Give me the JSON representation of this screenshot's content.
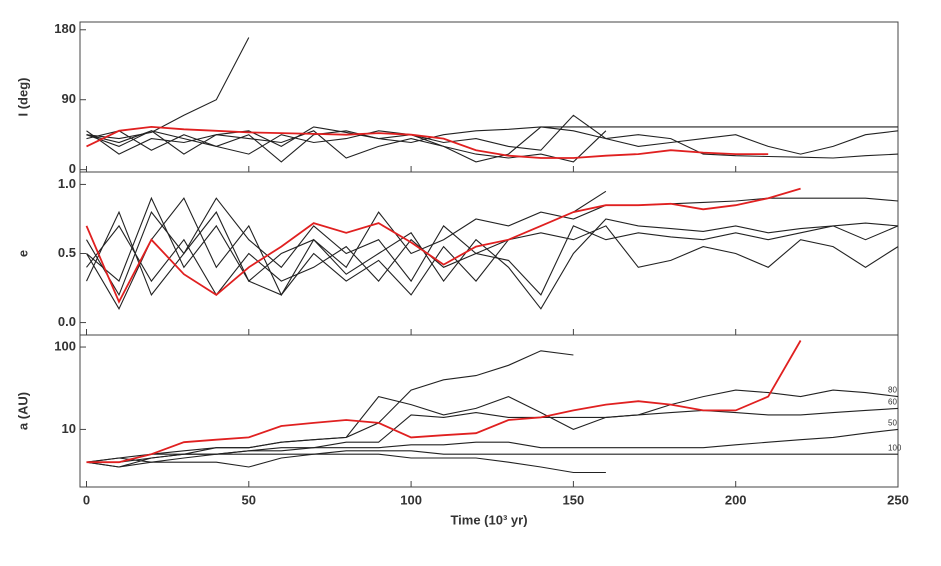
{
  "chart_data": [
    {
      "type": "line",
      "ylabel": "I (deg)",
      "x": [
        0,
        10,
        20,
        30,
        40,
        50,
        60,
        70,
        80,
        90,
        100,
        110,
        120,
        130,
        140,
        150,
        160,
        170,
        180,
        190,
        200,
        210,
        220,
        230,
        240,
        250
      ],
      "xlim": [
        -2,
        250
      ],
      "xticks": [
        0,
        50,
        100,
        150,
        200,
        250
      ],
      "ylim": [
        -3,
        190
      ],
      "yticks": [
        0,
        90,
        180
      ],
      "series": [
        {
          "color": "#222222",
          "values": [
            45,
            40,
            48,
            70,
            90,
            170,
            null,
            null,
            null,
            null,
            null,
            null,
            null,
            null,
            null,
            null,
            null,
            null,
            null,
            null,
            null,
            null,
            null,
            null,
            null,
            null
          ]
        },
        {
          "color": "#222222",
          "values": [
            45,
            30,
            50,
            20,
            45,
            50,
            30,
            55,
            48,
            40,
            35,
            45,
            50,
            52,
            55,
            55,
            55,
            55,
            55,
            55,
            55,
            55,
            55,
            55,
            55,
            55
          ]
        },
        {
          "color": "#222222",
          "values": [
            50,
            20,
            40,
            35,
            45,
            40,
            35,
            50,
            15,
            30,
            40,
            30,
            10,
            20,
            55,
            50,
            40,
            30,
            35,
            40,
            45,
            30,
            20,
            30,
            45,
            50
          ]
        },
        {
          "color": "#222222",
          "values": [
            45,
            35,
            50,
            40,
            30,
            45,
            10,
            45,
            50,
            40,
            45,
            35,
            40,
            30,
            25,
            70,
            40,
            45,
            40,
            20,
            18,
            17,
            16,
            15,
            18,
            20
          ]
        },
        {
          "color": "#222222",
          "values": [
            40,
            50,
            25,
            45,
            30,
            20,
            45,
            35,
            40,
            50,
            45,
            30,
            20,
            15,
            20,
            10,
            50,
            null,
            null,
            null,
            null,
            null,
            null,
            null,
            null,
            null
          ]
        },
        {
          "color": "#e02020",
          "values": [
            30,
            50,
            55,
            52,
            50,
            48,
            47,
            46,
            45,
            47,
            45,
            40,
            25,
            18,
            15,
            15,
            18,
            20,
            25,
            22,
            20,
            20,
            null,
            null,
            null,
            null
          ]
        }
      ]
    },
    {
      "type": "line",
      "ylabel": "e",
      "x": [
        0,
        10,
        20,
        30,
        40,
        50,
        60,
        70,
        80,
        90,
        100,
        110,
        120,
        130,
        140,
        150,
        160,
        170,
        180,
        190,
        200,
        210,
        220,
        230,
        240,
        250
      ],
      "xlim": [
        -2,
        250
      ],
      "xticks": [
        0,
        50,
        100,
        150,
        200,
        250
      ],
      "ylim": [
        -0.09,
        1.09
      ],
      "yticks": [
        {
          "value": 0,
          "label": "0.0"
        },
        0.5,
        {
          "value": 1,
          "label": "1.0"
        }
      ],
      "series": [
        {
          "color": "#222222",
          "values": [
            0.6,
            0.2,
            0.8,
            0.5,
            0.9,
            0.6,
            0.4,
            0.7,
            0.5,
            0.6,
            0.3,
            0.7,
            0.5,
            0.6,
            0.7,
            0.8,
            0.95,
            null,
            null,
            null,
            null,
            null,
            null,
            null,
            null,
            null
          ]
        },
        {
          "color": "#222222",
          "values": [
            0.5,
            0.3,
            0.9,
            0.4,
            0.7,
            0.3,
            0.5,
            0.6,
            0.4,
            0.8,
            0.5,
            0.6,
            0.75,
            0.7,
            0.8,
            0.75,
            0.85,
            0.85,
            0.86,
            0.87,
            0.88,
            0.9,
            0.9,
            0.9,
            0.9,
            0.88
          ]
        },
        {
          "color": "#222222",
          "values": [
            0.4,
            0.7,
            0.3,
            0.6,
            0.2,
            0.5,
            0.3,
            0.4,
            0.55,
            0.3,
            0.6,
            0.4,
            0.5,
            0.45,
            0.2,
            0.7,
            0.6,
            0.65,
            0.62,
            0.6,
            0.65,
            0.6,
            0.65,
            0.7,
            0.6,
            0.7
          ]
        },
        {
          "color": "#222222",
          "values": [
            0.3,
            0.8,
            0.2,
            0.5,
            0.8,
            0.3,
            0.2,
            0.5,
            0.3,
            0.45,
            0.2,
            0.55,
            0.3,
            0.6,
            0.65,
            0.6,
            0.7,
            0.4,
            0.45,
            0.55,
            0.5,
            0.4,
            0.6,
            0.55,
            0.4,
            0.55
          ]
        },
        {
          "color": "#222222",
          "values": [
            0.5,
            0.1,
            0.6,
            0.9,
            0.4,
            0.7,
            0.2,
            0.6,
            0.35,
            0.5,
            0.65,
            0.3,
            0.6,
            0.4,
            0.1,
            0.5,
            0.75,
            0.7,
            0.68,
            0.66,
            0.7,
            0.65,
            0.68,
            0.7,
            0.72,
            0.7
          ]
        },
        {
          "color": "#e02020",
          "values": [
            0.7,
            0.15,
            0.6,
            0.35,
            0.2,
            0.4,
            0.55,
            0.72,
            0.65,
            0.72,
            0.58,
            0.42,
            0.55,
            0.6,
            0.7,
            0.8,
            0.85,
            0.85,
            0.86,
            0.82,
            0.85,
            0.9,
            0.97,
            null,
            null,
            null
          ]
        }
      ]
    },
    {
      "type": "line",
      "ylabel": "a (AU)",
      "xlabel": "Time (10³ yr)",
      "ylog": true,
      "x": [
        0,
        10,
        20,
        30,
        40,
        50,
        60,
        70,
        80,
        90,
        100,
        110,
        120,
        130,
        140,
        150,
        160,
        170,
        180,
        190,
        200,
        210,
        220,
        230,
        240,
        250
      ],
      "xlim": [
        -2,
        250
      ],
      "xticks": [
        0,
        50,
        100,
        150,
        200,
        250
      ],
      "ylim": [
        2,
        140
      ],
      "yticks": [
        10,
        100
      ],
      "series": [
        {
          "color": "#222222",
          "values": [
            4,
            4.5,
            5,
            5,
            6,
            6,
            7,
            7.5,
            8,
            12,
            30,
            40,
            45,
            60,
            90,
            80,
            null,
            null,
            null,
            null,
            null,
            null,
            null,
            null,
            null,
            null
          ]
        },
        {
          "color": "#222222",
          "end_label": "80",
          "values": [
            4,
            3.5,
            4.5,
            5,
            5,
            5.5,
            6,
            6,
            7,
            7,
            15,
            14,
            16,
            14,
            14,
            14,
            14,
            15,
            20,
            25,
            30,
            28,
            25,
            30,
            28,
            25
          ]
        },
        {
          "color": "#222222",
          "end_label": "60",
          "values": [
            4,
            4,
            5,
            5.5,
            6,
            6,
            7,
            7.5,
            8,
            25,
            20,
            15,
            18,
            25,
            16,
            10,
            14,
            15,
            16,
            17,
            16,
            15,
            15,
            16,
            17,
            18
          ]
        },
        {
          "color": "#222222",
          "end_label": "50",
          "values": [
            4,
            4,
            4.5,
            5,
            5,
            5.5,
            5.5,
            6,
            6,
            6,
            6.5,
            6.5,
            7,
            7,
            6,
            6,
            6,
            6,
            6,
            6,
            6.5,
            7,
            7.5,
            8,
            9,
            10
          ]
        },
        {
          "color": "#222222",
          "end_label": "100",
          "values": [
            4,
            4.5,
            4,
            4.5,
            5,
            5,
            5,
            5,
            5.5,
            5.5,
            5.5,
            5,
            5,
            5,
            5,
            5,
            5,
            5,
            5,
            5,
            5,
            5,
            5,
            5,
            5,
            5
          ]
        },
        {
          "color": "#222222",
          "values": [
            4,
            3.5,
            4,
            4,
            4,
            3.5,
            4.5,
            5,
            5,
            5,
            4.5,
            4.5,
            4.5,
            4,
            3.5,
            3,
            3,
            null,
            null,
            null,
            null,
            null,
            null,
            null,
            null,
            null
          ]
        },
        {
          "color": "#e02020",
          "values": [
            4,
            4,
            5,
            7,
            7.5,
            8,
            11,
            12,
            13,
            12,
            8,
            8.5,
            9,
            13,
            14,
            17,
            20,
            22,
            20,
            17,
            17,
            25,
            120,
            null,
            null,
            null
          ]
        }
      ]
    }
  ]
}
